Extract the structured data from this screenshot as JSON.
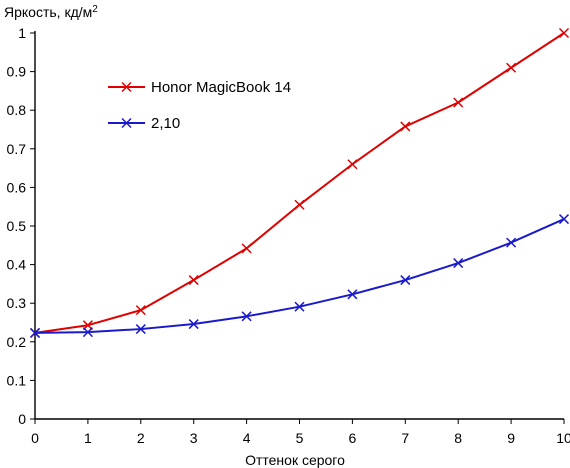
{
  "chart_data": {
    "type": "line",
    "ylabel": "Яркость, кд/м",
    "ylabel_sup": "2",
    "xlabel": "Оттенок серого",
    "x": [
      0,
      1,
      2,
      3,
      4,
      5,
      6,
      7,
      8,
      9,
      10
    ],
    "xlim": [
      0,
      10
    ],
    "ylim": [
      0,
      1
    ],
    "x_ticks": [
      "0",
      "1",
      "2",
      "3",
      "4",
      "5",
      "6",
      "7",
      "8",
      "9",
      "10"
    ],
    "y_ticks": [
      "0",
      "0.1",
      "0.2",
      "0.3",
      "0.4",
      "0.5",
      "0.6",
      "0.7",
      "0.8",
      "0.9",
      "1"
    ],
    "grid": false,
    "legend_position": "top-left",
    "series": [
      {
        "name": "Honor MagicBook 14",
        "color": "#e00000",
        "marker": "x",
        "values": [
          0.223,
          0.243,
          0.282,
          0.36,
          0.442,
          0.555,
          0.66,
          0.758,
          0.82,
          0.91,
          1.0
        ]
      },
      {
        "name": "2,10",
        "color": "#1a1acc",
        "marker": "x",
        "values": [
          0.223,
          0.225,
          0.233,
          0.246,
          0.266,
          0.291,
          0.323,
          0.36,
          0.404,
          0.457,
          0.518
        ]
      }
    ]
  }
}
